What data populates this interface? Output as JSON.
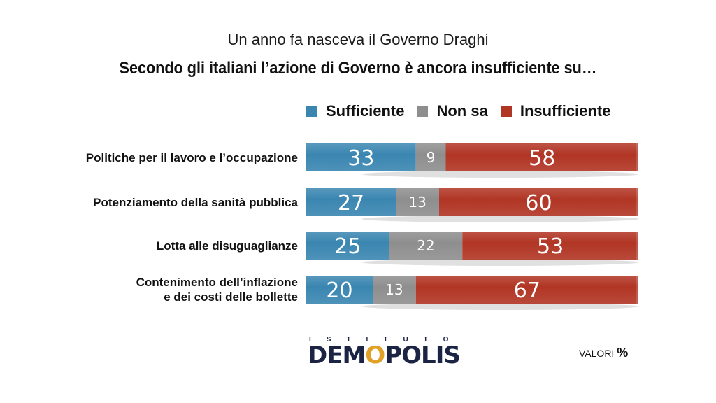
{
  "header": {
    "subtitle": "Un anno fa nasceva il Governo Draghi",
    "title": "Secondo gli italiani l’azione di Governo è ancora insufficiente su…"
  },
  "chart_data": {
    "type": "bar",
    "orientation": "horizontal",
    "stacked": true,
    "categories": [
      "Politiche per il lavoro e l’occupazione",
      "Potenziamento della sanità pubblica",
      "Lotta alle disuguaglianze",
      "Contenimento dell’inflazione e dei costi delle bollette"
    ],
    "category_lines": [
      [
        "Politiche per il lavoro e l’occupazione"
      ],
      [
        "Potenziamento della sanità pubblica"
      ],
      [
        "Lotta alle disuguaglianze"
      ],
      [
        "Contenimento dell’inflazione",
        "e dei costi delle bollette"
      ]
    ],
    "series": [
      {
        "name": "Sufficiente",
        "color": "#3a86b1",
        "values": [
          33,
          27,
          25,
          20
        ]
      },
      {
        "name": "Non sa",
        "color": "#8e8e8e",
        "values": [
          9,
          13,
          22,
          13
        ]
      },
      {
        "name": "Insufficiente",
        "color": "#b13524",
        "values": [
          58,
          60,
          53,
          67
        ]
      }
    ],
    "xlim": [
      0,
      100
    ],
    "legend_position": "top",
    "grid": false
  },
  "footer": {
    "logo_top": "ISTITUTO",
    "logo_main_pre": "DEM",
    "logo_main_o": "O",
    "logo_main_post": "POLIS",
    "unit_label": "VALORI",
    "unit_symbol": "%"
  }
}
